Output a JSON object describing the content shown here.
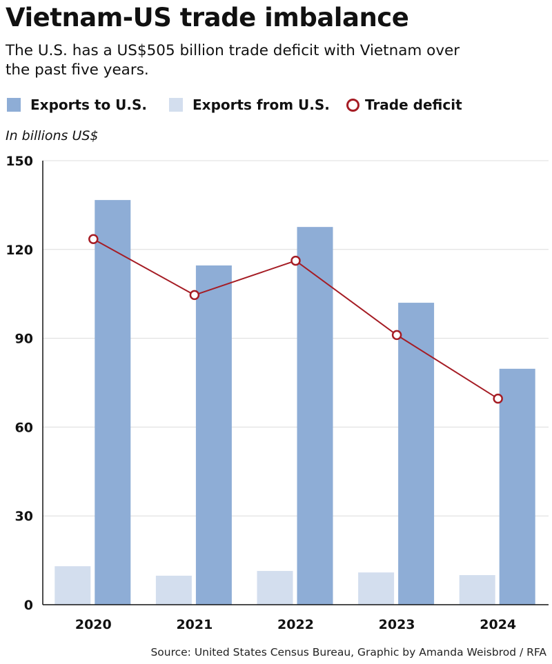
{
  "header": {
    "title": "Vietnam-US trade imbalance",
    "subtitle": "The U.S. has a US$505 billion trade deficit with Vietnam over the past five years."
  },
  "legend": {
    "exports_to": "Exports to U.S.",
    "exports_from": "Exports from U.S.",
    "deficit": "Trade deficit"
  },
  "unit_label": "In billions US$",
  "source": "Source: United States Census Bureau, Graphic by Amanda Weisbrod / RFA",
  "colors": {
    "exports_to": "#8eadd6",
    "exports_from": "#d3deee",
    "deficit": "#a51c24"
  },
  "chart_data": {
    "type": "bar",
    "title": "Vietnam-US trade imbalance",
    "ylabel": "In billions US$",
    "categories": [
      "2020",
      "2021",
      "2022",
      "2023",
      "2024"
    ],
    "ylim": [
      0,
      150
    ],
    "yticks": [
      0,
      30,
      60,
      90,
      120,
      150
    ],
    "series": [
      {
        "name": "Exports from U.S.",
        "type": "bar",
        "values": [
          13.0,
          9.8,
          11.4,
          10.9,
          10.0
        ]
      },
      {
        "name": "Exports to U.S.",
        "type": "bar",
        "values": [
          136.7,
          114.6,
          127.6,
          102.0,
          79.7
        ]
      },
      {
        "name": "Trade deficit",
        "type": "line",
        "values": [
          123.5,
          104.6,
          116.2,
          91.1,
          69.6
        ]
      }
    ],
    "grid": true,
    "legend_position": "top"
  }
}
